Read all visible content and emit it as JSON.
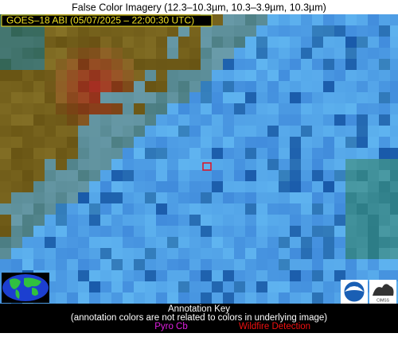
{
  "header": {
    "title": "False Color Imagery (12.3–10.3µm, 10.3–3.9µm, 10.3µm)"
  },
  "overlay": {
    "label": "GOES–18 ABI (05/07/2025 – 22:00:30 UTC)"
  },
  "key": {
    "title": "Annotation Key",
    "note": "(annotation colors are not related to colors in underlying image)",
    "items": [
      "Pyro Cb",
      "Wildfire Detection"
    ]
  },
  "logos": {
    "noaa": "NOAA",
    "cimss": "CIMSS"
  }
}
